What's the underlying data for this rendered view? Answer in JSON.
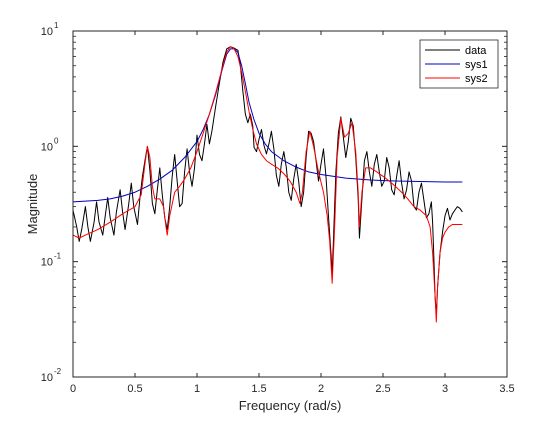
{
  "chart_data": {
    "type": "line",
    "title": "",
    "xlabel": "Frequency (rad/s)",
    "ylabel": "Magnitude",
    "xlim": [
      0,
      3.5
    ],
    "ylim": [
      0.01,
      10
    ],
    "yscale": "log",
    "grid": false,
    "legend_position": "top-right",
    "x_ticks": [
      0,
      0.5,
      1,
      1.5,
      2,
      2.5,
      3,
      3.5
    ],
    "x_tick_labels": [
      "0",
      "0.5",
      "1",
      "1.5",
      "2",
      "2.5",
      "3",
      "3.5"
    ],
    "y_ticks": [
      0.01,
      0.1,
      1,
      10
    ],
    "y_tick_labels": [
      {
        "base": "10",
        "exp": "-2"
      },
      {
        "base": "10",
        "exp": "-1"
      },
      {
        "base": "10",
        "exp": "0"
      },
      {
        "base": "10",
        "exp": "1"
      }
    ],
    "series": [
      {
        "name": "data",
        "color": "#000000",
        "points": [
          [
            0.0,
            0.28
          ],
          [
            0.03,
            0.2
          ],
          [
            0.05,
            0.15
          ],
          [
            0.07,
            0.19
          ],
          [
            0.1,
            0.3
          ],
          [
            0.12,
            0.2
          ],
          [
            0.14,
            0.15
          ],
          [
            0.17,
            0.22
          ],
          [
            0.19,
            0.33
          ],
          [
            0.21,
            0.22
          ],
          [
            0.24,
            0.17
          ],
          [
            0.26,
            0.25
          ],
          [
            0.28,
            0.36
          ],
          [
            0.3,
            0.24
          ],
          [
            0.33,
            0.17
          ],
          [
            0.35,
            0.27
          ],
          [
            0.38,
            0.42
          ],
          [
            0.4,
            0.27
          ],
          [
            0.42,
            0.19
          ],
          [
            0.45,
            0.32
          ],
          [
            0.47,
            0.48
          ],
          [
            0.49,
            0.3
          ],
          [
            0.52,
            0.21
          ],
          [
            0.54,
            0.36
          ],
          [
            0.56,
            0.55
          ],
          [
            0.58,
            0.75
          ],
          [
            0.6,
            1.0
          ],
          [
            0.62,
            0.62
          ],
          [
            0.64,
            0.32
          ],
          [
            0.66,
            0.26
          ],
          [
            0.68,
            0.42
          ],
          [
            0.7,
            0.65
          ],
          [
            0.72,
            0.38
          ],
          [
            0.74,
            0.24
          ],
          [
            0.76,
            0.19
          ],
          [
            0.78,
            0.3
          ],
          [
            0.8,
            0.55
          ],
          [
            0.82,
            0.85
          ],
          [
            0.84,
            0.5
          ],
          [
            0.86,
            0.3
          ],
          [
            0.88,
            0.32
          ],
          [
            0.9,
            0.6
          ],
          [
            0.92,
            0.95
          ],
          [
            0.94,
            0.6
          ],
          [
            0.96,
            0.45
          ],
          [
            0.98,
            0.65
          ],
          [
            1.0,
            1.25
          ],
          [
            1.02,
            0.85
          ],
          [
            1.04,
            0.75
          ],
          [
            1.06,
            1.05
          ],
          [
            1.08,
            1.55
          ],
          [
            1.1,
            1.05
          ],
          [
            1.12,
            1.35
          ],
          [
            1.15,
            2.2
          ],
          [
            1.18,
            3.5
          ],
          [
            1.21,
            5.4
          ],
          [
            1.24,
            7.0
          ],
          [
            1.27,
            7.3
          ],
          [
            1.3,
            7.1
          ],
          [
            1.33,
            6.8
          ],
          [
            1.35,
            5.0
          ],
          [
            1.37,
            3.0
          ],
          [
            1.39,
            1.9
          ],
          [
            1.41,
            1.6
          ],
          [
            1.43,
            1.9
          ],
          [
            1.45,
            1.5
          ],
          [
            1.46,
            0.98
          ],
          [
            1.48,
            0.9
          ],
          [
            1.5,
            1.15
          ],
          [
            1.52,
            1.4
          ],
          [
            1.54,
            1.02
          ],
          [
            1.56,
            0.86
          ],
          [
            1.58,
            1.05
          ],
          [
            1.6,
            1.35
          ],
          [
            1.62,
            0.95
          ],
          [
            1.64,
            0.56
          ],
          [
            1.66,
            0.45
          ],
          [
            1.68,
            0.7
          ],
          [
            1.7,
            0.9
          ],
          [
            1.72,
            0.66
          ],
          [
            1.74,
            0.4
          ],
          [
            1.76,
            0.34
          ],
          [
            1.78,
            0.52
          ],
          [
            1.8,
            0.7
          ],
          [
            1.82,
            0.5
          ],
          [
            1.84,
            0.3
          ],
          [
            1.86,
            0.4
          ],
          [
            1.88,
            0.8
          ],
          [
            1.9,
            1.35
          ],
          [
            1.92,
            1.3
          ],
          [
            1.94,
            1.1
          ],
          [
            1.96,
            0.75
          ],
          [
            1.98,
            0.5
          ],
          [
            2.0,
            0.7
          ],
          [
            2.02,
            0.95
          ],
          [
            2.04,
            0.55
          ],
          [
            2.06,
            0.25
          ],
          [
            2.08,
            0.12
          ],
          [
            2.09,
            0.08
          ],
          [
            2.1,
            0.15
          ],
          [
            2.12,
            0.6
          ],
          [
            2.14,
            1.3
          ],
          [
            2.16,
            1.8
          ],
          [
            2.18,
            1.2
          ],
          [
            2.2,
            0.8
          ],
          [
            2.22,
            1.1
          ],
          [
            2.24,
            1.75
          ],
          [
            2.26,
            1.5
          ],
          [
            2.28,
            0.8
          ],
          [
            2.3,
            0.35
          ],
          [
            2.31,
            0.16
          ],
          [
            2.33,
            0.35
          ],
          [
            2.35,
            0.75
          ],
          [
            2.37,
            0.9
          ],
          [
            2.39,
            0.6
          ],
          [
            2.41,
            0.45
          ],
          [
            2.43,
            0.7
          ],
          [
            2.45,
            0.85
          ],
          [
            2.47,
            0.6
          ],
          [
            2.49,
            0.45
          ],
          [
            2.51,
            0.5
          ],
          [
            2.53,
            0.8
          ],
          [
            2.55,
            0.65
          ],
          [
            2.57,
            0.42
          ],
          [
            2.59,
            0.38
          ],
          [
            2.61,
            0.55
          ],
          [
            2.63,
            0.75
          ],
          [
            2.65,
            0.48
          ],
          [
            2.67,
            0.35
          ],
          [
            2.69,
            0.42
          ],
          [
            2.71,
            0.6
          ],
          [
            2.73,
            0.5
          ],
          [
            2.75,
            0.3
          ],
          [
            2.77,
            0.28
          ],
          [
            2.79,
            0.4
          ],
          [
            2.81,
            0.48
          ],
          [
            2.83,
            0.34
          ],
          [
            2.85,
            0.24
          ],
          [
            2.87,
            0.26
          ],
          [
            2.89,
            0.33
          ],
          [
            2.9,
            0.22
          ],
          [
            2.91,
            0.11
          ],
          [
            2.92,
            0.05
          ],
          [
            2.93,
            0.035
          ],
          [
            2.94,
            0.06
          ],
          [
            2.96,
            0.12
          ],
          [
            2.98,
            0.18
          ],
          [
            3.0,
            0.25
          ],
          [
            3.02,
            0.29
          ],
          [
            3.04,
            0.23
          ],
          [
            3.06,
            0.26
          ],
          [
            3.08,
            0.28
          ],
          [
            3.1,
            0.3
          ],
          [
            3.12,
            0.29
          ],
          [
            3.14,
            0.27
          ]
        ]
      },
      {
        "name": "sys1",
        "color": "#0000bf",
        "points": [
          [
            0.0,
            0.33
          ],
          [
            0.1,
            0.335
          ],
          [
            0.2,
            0.34
          ],
          [
            0.3,
            0.35
          ],
          [
            0.4,
            0.37
          ],
          [
            0.5,
            0.4
          ],
          [
            0.6,
            0.45
          ],
          [
            0.7,
            0.52
          ],
          [
            0.8,
            0.62
          ],
          [
            0.9,
            0.8
          ],
          [
            1.0,
            1.1
          ],
          [
            1.05,
            1.4
          ],
          [
            1.1,
            1.9
          ],
          [
            1.15,
            2.8
          ],
          [
            1.2,
            4.5
          ],
          [
            1.24,
            6.3
          ],
          [
            1.27,
            7.0
          ],
          [
            1.3,
            7.0
          ],
          [
            1.33,
            6.5
          ],
          [
            1.36,
            5.0
          ],
          [
            1.39,
            3.5
          ],
          [
            1.42,
            2.4
          ],
          [
            1.46,
            1.7
          ],
          [
            1.5,
            1.3
          ],
          [
            1.55,
            1.05
          ],
          [
            1.6,
            0.9
          ],
          [
            1.7,
            0.75
          ],
          [
            1.8,
            0.66
          ],
          [
            1.9,
            0.6
          ],
          [
            2.0,
            0.57
          ],
          [
            2.2,
            0.53
          ],
          [
            2.4,
            0.51
          ],
          [
            2.6,
            0.5
          ],
          [
            2.8,
            0.495
          ],
          [
            3.0,
            0.49
          ],
          [
            3.14,
            0.49
          ]
        ]
      },
      {
        "name": "sys2",
        "color": "#ff0000",
        "points": [
          [
            0.0,
            0.17
          ],
          [
            0.05,
            0.16
          ],
          [
            0.1,
            0.17
          ],
          [
            0.2,
            0.19
          ],
          [
            0.3,
            0.22
          ],
          [
            0.4,
            0.26
          ],
          [
            0.5,
            0.3
          ],
          [
            0.55,
            0.38
          ],
          [
            0.58,
            0.7
          ],
          [
            0.6,
            1.0
          ],
          [
            0.62,
            0.8
          ],
          [
            0.64,
            0.45
          ],
          [
            0.66,
            0.35
          ],
          [
            0.7,
            0.35
          ],
          [
            0.73,
            0.3
          ],
          [
            0.75,
            0.2
          ],
          [
            0.76,
            0.17
          ],
          [
            0.78,
            0.25
          ],
          [
            0.82,
            0.4
          ],
          [
            0.86,
            0.45
          ],
          [
            0.9,
            0.52
          ],
          [
            0.95,
            0.65
          ],
          [
            1.0,
            0.9
          ],
          [
            1.05,
            1.3
          ],
          [
            1.1,
            1.9
          ],
          [
            1.15,
            2.9
          ],
          [
            1.2,
            4.6
          ],
          [
            1.24,
            6.6
          ],
          [
            1.27,
            7.3
          ],
          [
            1.3,
            7.0
          ],
          [
            1.33,
            6.0
          ],
          [
            1.36,
            4.4
          ],
          [
            1.39,
            3.0
          ],
          [
            1.42,
            2.0
          ],
          [
            1.45,
            1.4
          ],
          [
            1.48,
            1.05
          ],
          [
            1.52,
            0.85
          ],
          [
            1.56,
            0.75
          ],
          [
            1.6,
            0.7
          ],
          [
            1.65,
            0.65
          ],
          [
            1.7,
            0.58
          ],
          [
            1.75,
            0.5
          ],
          [
            1.8,
            0.4
          ],
          [
            1.83,
            0.32
          ],
          [
            1.85,
            0.4
          ],
          [
            1.88,
            0.9
          ],
          [
            1.91,
            1.35
          ],
          [
            1.94,
            1.0
          ],
          [
            1.98,
            0.6
          ],
          [
            2.02,
            0.4
          ],
          [
            2.05,
            0.25
          ],
          [
            2.07,
            0.15
          ],
          [
            2.09,
            0.065
          ],
          [
            2.11,
            0.2
          ],
          [
            2.13,
            0.8
          ],
          [
            2.16,
            1.75
          ],
          [
            2.19,
            1.2
          ],
          [
            2.22,
            1.3
          ],
          [
            2.25,
            1.6
          ],
          [
            2.28,
            0.9
          ],
          [
            2.3,
            0.4
          ],
          [
            2.31,
            0.2
          ],
          [
            2.33,
            0.4
          ],
          [
            2.36,
            0.65
          ],
          [
            2.4,
            0.65
          ],
          [
            2.45,
            0.6
          ],
          [
            2.5,
            0.55
          ],
          [
            2.55,
            0.5
          ],
          [
            2.6,
            0.45
          ],
          [
            2.65,
            0.4
          ],
          [
            2.7,
            0.35
          ],
          [
            2.75,
            0.3
          ],
          [
            2.8,
            0.28
          ],
          [
            2.85,
            0.25
          ],
          [
            2.88,
            0.2
          ],
          [
            2.9,
            0.12
          ],
          [
            2.92,
            0.05
          ],
          [
            2.93,
            0.03
          ],
          [
            2.94,
            0.06
          ],
          [
            2.96,
            0.12
          ],
          [
            2.98,
            0.16
          ],
          [
            3.0,
            0.18
          ],
          [
            3.03,
            0.2
          ],
          [
            3.06,
            0.21
          ],
          [
            3.1,
            0.21
          ],
          [
            3.14,
            0.21
          ]
        ]
      }
    ]
  }
}
